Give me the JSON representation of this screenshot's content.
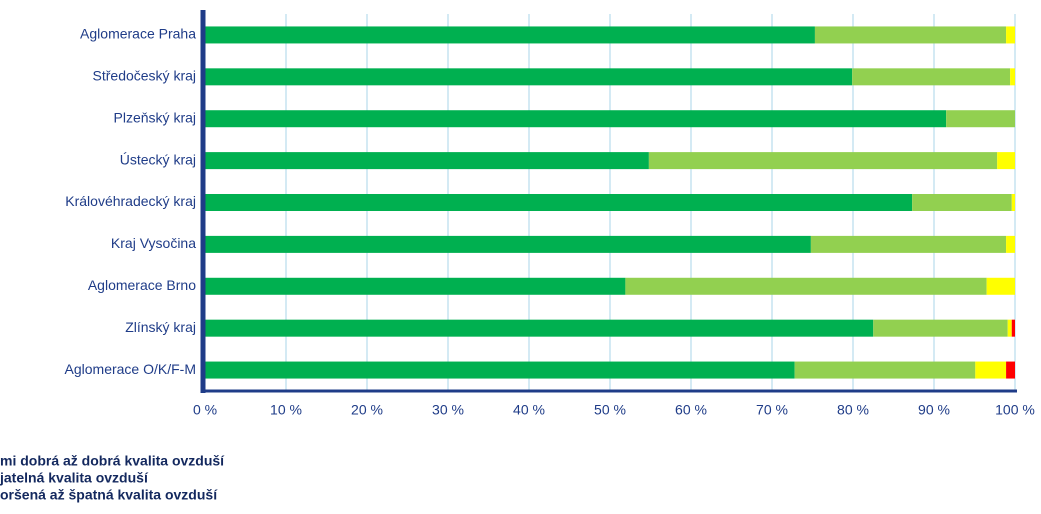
{
  "chart_data": {
    "type": "stacked-barh",
    "categories": [
      "Aglomerace Praha",
      "Středočeský kraj",
      "Plzeňský kraj",
      "Ústecký kraj",
      "Královéhradecký kraj",
      "Kraj Vysočina",
      "Aglomerace Brno",
      "Zlínský kraj",
      "Aglomerace O/K/F-M"
    ],
    "series": [
      {
        "name": "mi dobrá až dobrá kvalita ovzduší",
        "color": "#00b050",
        "values": [
          75.3,
          79.9,
          91.5,
          54.8,
          87.3,
          74.8,
          51.9,
          82.5,
          72.8
        ]
      },
      {
        "name": "jatelná kvalita ovzduší",
        "color": "#92d050",
        "values": [
          23.6,
          19.5,
          8.5,
          43,
          12.3,
          24.1,
          44.6,
          16.6,
          22.3
        ]
      },
      {
        "name": "oršená až špatná kvalita ovzduší",
        "color": "#ffff00",
        "values": [
          1.1,
          0.6,
          0,
          2.2,
          0.4,
          1.1,
          3.5,
          0.5,
          3.8
        ]
      },
      {
        "color": "#ff0000",
        "values": [
          0,
          0,
          0,
          0,
          0,
          0,
          0,
          0.4,
          1.1
        ]
      }
    ],
    "xlim": [
      0,
      100
    ],
    "xticks": [
      {
        "value": 0,
        "label": "0 %"
      },
      {
        "value": 10,
        "label": "10 %"
      },
      {
        "value": 20,
        "label": "20 %"
      },
      {
        "value": 30,
        "label": "30 %"
      },
      {
        "value": 40,
        "label": "40 %"
      },
      {
        "value": 50,
        "label": "50 %"
      },
      {
        "value": 60,
        "label": "60 %"
      },
      {
        "value": 70,
        "label": "70 %"
      },
      {
        "value": 80,
        "label": "80 %"
      },
      {
        "value": 90,
        "label": "90 %"
      },
      {
        "value": 100,
        "label": "100 %"
      }
    ],
    "grid": true
  }
}
